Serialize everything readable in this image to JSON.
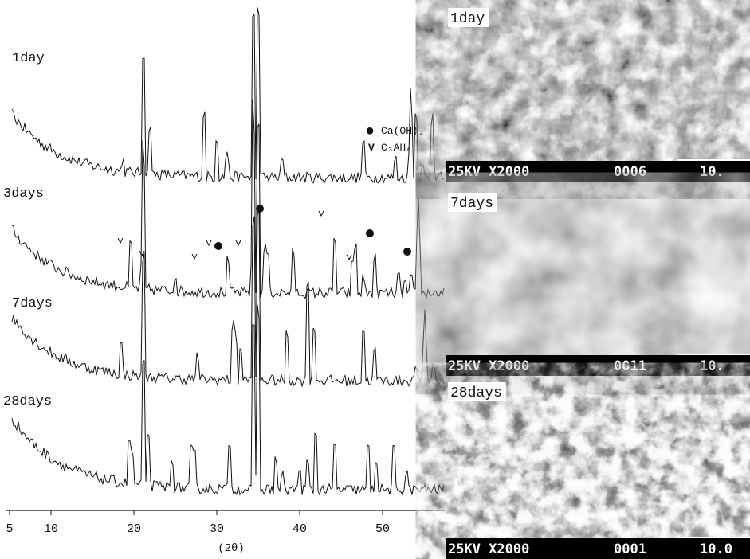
{
  "xrd": {
    "patterns": [
      {
        "label": "1day"
      },
      {
        "label": "3days"
      },
      {
        "label": "7days"
      },
      {
        "label": "28days"
      }
    ],
    "legend": [
      {
        "symbol": "●",
        "label": "Ca(OH)₂"
      },
      {
        "symbol": "V",
        "label": "C₃AH₆"
      }
    ],
    "x_axis": {
      "ticks": [
        5,
        10,
        20,
        30,
        40,
        50
      ],
      "label": "(2θ)"
    }
  },
  "sem": [
    {
      "label": "1day",
      "caption": "25KV X2000",
      "code": "0006",
      "scale": "10."
    },
    {
      "label": "7days",
      "caption": "25KV X2000",
      "code": "0011",
      "scale": "10."
    },
    {
      "label": "28days",
      "caption": "25KV X2000",
      "code": "0001",
      "scale": "10.0"
    }
  ]
}
